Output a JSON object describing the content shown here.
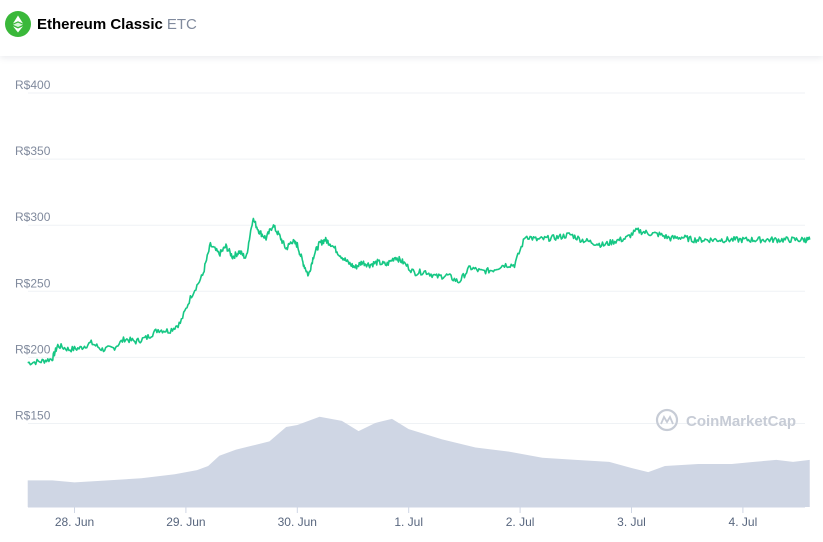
{
  "header": {
    "coin_name": "Ethereum Classic",
    "coin_symbol": "ETC",
    "logo_icon": "ethereum-classic-logo-icon",
    "logo_color": "#3ab83a"
  },
  "watermark": {
    "text": "CoinMarketCap",
    "icon": "coinmarketcap-logo-icon"
  },
  "chart_data": {
    "type": "line",
    "title": "",
    "xlabel": "",
    "ylabel": "",
    "ylim": [
      125,
      410
    ],
    "xlim": [
      -0.42,
      6.6
    ],
    "grid": true,
    "y_ticks": [
      {
        "value": 400,
        "label": "R$400"
      },
      {
        "value": 350,
        "label": "R$350"
      },
      {
        "value": 300,
        "label": "R$300"
      },
      {
        "value": 250,
        "label": "R$250"
      },
      {
        "value": 200,
        "label": "R$200"
      },
      {
        "value": 150,
        "label": "R$150"
      }
    ],
    "x_ticks": [
      {
        "value": 0,
        "label": "28. Jun"
      },
      {
        "value": 1,
        "label": "29. Jun"
      },
      {
        "value": 2,
        "label": "30. Jun"
      },
      {
        "value": 3,
        "label": "1. Jul"
      },
      {
        "value": 4,
        "label": "2. Jul"
      },
      {
        "value": 5,
        "label": "3. Jul"
      },
      {
        "value": 6,
        "label": "4. Jul"
      }
    ],
    "x_unit": "days",
    "colors": {
      "price_line": "#16c784",
      "volume_fill": "#cfd6e4",
      "grid": "#eff2f5"
    },
    "series": [
      {
        "kind": "price",
        "x": [
          -0.42,
          -0.3,
          -0.2,
          -0.15,
          -0.05,
          0.05,
          0.15,
          0.25,
          0.35,
          0.45,
          0.55,
          0.65,
          0.75,
          0.85,
          0.95,
          1.05,
          1.15,
          1.22,
          1.3,
          1.36,
          1.42,
          1.48,
          1.54,
          1.6,
          1.66,
          1.72,
          1.78,
          1.84,
          1.9,
          1.95,
          2.0,
          2.05,
          2.1,
          2.15,
          2.2,
          2.25,
          2.3,
          2.38,
          2.45,
          2.52,
          2.58,
          2.65,
          2.72,
          2.8,
          2.88,
          2.95,
          3.05,
          3.15,
          3.25,
          3.35,
          3.45,
          3.55,
          3.65,
          3.75,
          3.85,
          3.95,
          4.05,
          4.15,
          4.25,
          4.35,
          4.45,
          4.55,
          4.65,
          4.75,
          4.85,
          4.95,
          5.05,
          5.15,
          5.25,
          5.35,
          5.45,
          5.55,
          5.65,
          5.75,
          5.85,
          5.95,
          6.05,
          6.15,
          6.25,
          6.35,
          6.45,
          6.55,
          6.6
        ],
        "y": [
          196,
          197,
          199,
          209,
          206,
          207,
          211,
          206,
          207,
          214,
          212,
          215,
          221,
          220,
          226,
          247,
          262,
          285,
          278,
          284,
          276,
          280,
          275,
          305,
          295,
          290,
          300,
          292,
          282,
          288,
          285,
          272,
          262,
          278,
          286,
          289,
          286,
          278,
          272,
          268,
          272,
          270,
          272,
          270,
          276,
          272,
          264,
          265,
          261,
          262,
          257,
          268,
          265,
          266,
          270,
          270,
          292,
          289,
          290,
          291,
          293,
          289,
          287,
          285,
          288,
          290,
          296,
          294,
          293,
          290,
          291,
          289,
          289,
          289,
          289,
          289,
          289,
          289,
          289,
          289,
          289,
          289,
          289
        ]
      },
      {
        "kind": "volume",
        "x": [
          -0.42,
          -0.2,
          0.0,
          0.3,
          0.6,
          0.9,
          1.1,
          1.2,
          1.3,
          1.45,
          1.6,
          1.75,
          1.9,
          2.0,
          2.2,
          2.4,
          2.55,
          2.7,
          2.85,
          3.0,
          3.3,
          3.6,
          3.9,
          4.2,
          4.5,
          4.8,
          5.0,
          5.15,
          5.3,
          5.6,
          5.9,
          6.1,
          6.3,
          6.45,
          6.6
        ],
        "y": [
          138,
          138,
          137,
          138,
          139,
          141,
          143,
          145,
          150,
          153,
          155,
          157,
          164,
          165,
          169,
          167,
          162,
          166,
          168,
          163,
          158,
          154,
          152,
          149,
          148,
          147,
          144,
          142,
          145,
          146,
          146,
          147,
          148,
          147,
          148
        ]
      }
    ]
  }
}
